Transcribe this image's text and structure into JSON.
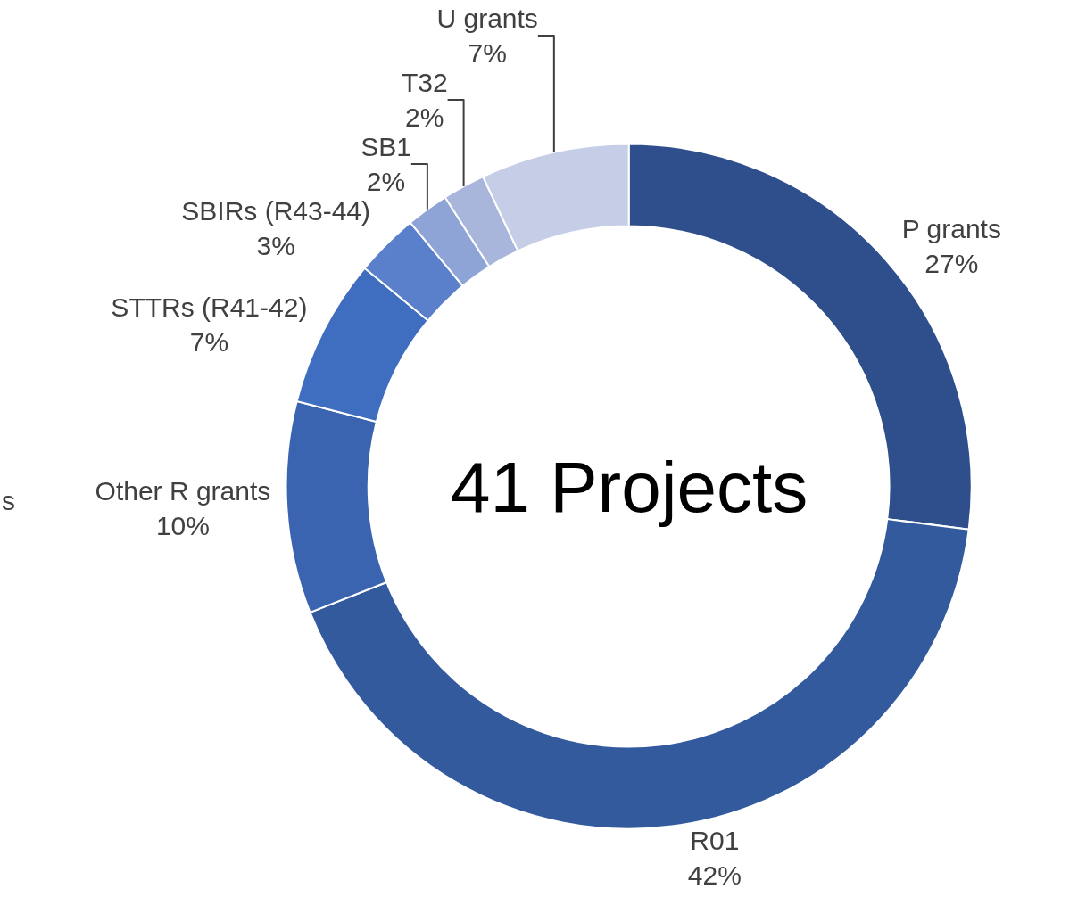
{
  "chart_data": {
    "type": "donut",
    "categories": [
      "P grants",
      "R01",
      "Other R grants",
      "STTRs (R41-42)",
      "SBIRs (R43-44)",
      "SB1",
      "T32",
      "U grants"
    ],
    "values": [
      27,
      42,
      10,
      7,
      3,
      2,
      2,
      7
    ],
    "value_labels": [
      "27%",
      "42%",
      "10%",
      "7%",
      "3%",
      "2%",
      "2%",
      "7%"
    ],
    "colors": [
      "#2e4f8c",
      "#345a9e",
      "#3a64b0",
      "#3f6dc0",
      "#5a80cb",
      "#8ea3d6",
      "#a8b6dc",
      "#c5cee6"
    ],
    "annotations": [
      "41 Projects",
      "s"
    ],
    "legend": false
  }
}
